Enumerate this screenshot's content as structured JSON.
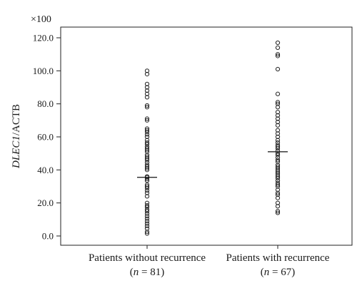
{
  "chart_data": {
    "type": "scatter",
    "subtype": "dot-strip",
    "multiplier_label": "×100",
    "ylabel_italic": "DLEC1",
    "ylabel_rest": "/ACTB",
    "ylim": [
      -4,
      125
    ],
    "yticks": [
      {
        "value": 0,
        "label": "0.0"
      },
      {
        "value": 20,
        "label": "20.0"
      },
      {
        "value": 40,
        "label": "40.0"
      },
      {
        "value": 60,
        "label": "60.0"
      },
      {
        "value": 80,
        "label": "80.0"
      },
      {
        "value": 100,
        "label": "100.0"
      },
      {
        "value": 120,
        "label": "120.0"
      }
    ],
    "grid": false,
    "series": [
      {
        "name": "Patients without recurrence",
        "label_line1": "Patients without recurrence",
        "label_n_prefix": "(",
        "label_n_var": "n",
        "label_n_rest": " = 81)",
        "median": 35.5,
        "values": [
          1.5,
          2.5,
          4.5,
          6,
          7.5,
          9,
          10.5,
          12,
          13.5,
          15,
          16,
          17.5,
          18.5,
          20,
          24,
          26,
          27.5,
          29,
          30,
          31,
          33.5,
          34.5,
          35.5,
          36,
          40,
          41,
          42,
          43,
          44.5,
          46,
          47,
          48,
          49,
          51,
          52,
          53,
          54,
          55.5,
          56.5,
          58,
          60,
          61.5,
          63,
          64,
          65,
          70,
          71,
          78,
          79,
          84,
          86,
          88,
          90,
          92,
          98,
          100
        ]
      },
      {
        "name": "Patients with recurrence",
        "label_line1": "Patients with recurrence",
        "label_n_prefix": "(",
        "label_n_var": "n",
        "label_n_rest": " = 67)",
        "median": 51,
        "values": [
          14,
          15,
          18,
          20,
          23,
          25,
          26,
          28,
          30,
          31,
          32,
          33.5,
          35,
          36,
          37,
          38,
          39,
          40,
          41,
          42,
          43,
          45,
          46,
          47.5,
          49,
          50,
          51.5,
          53,
          54,
          55,
          56.5,
          58,
          60,
          62,
          64,
          67,
          69,
          71,
          73,
          75,
          78,
          80,
          81,
          86,
          101,
          109,
          110,
          114,
          117
        ]
      }
    ]
  }
}
